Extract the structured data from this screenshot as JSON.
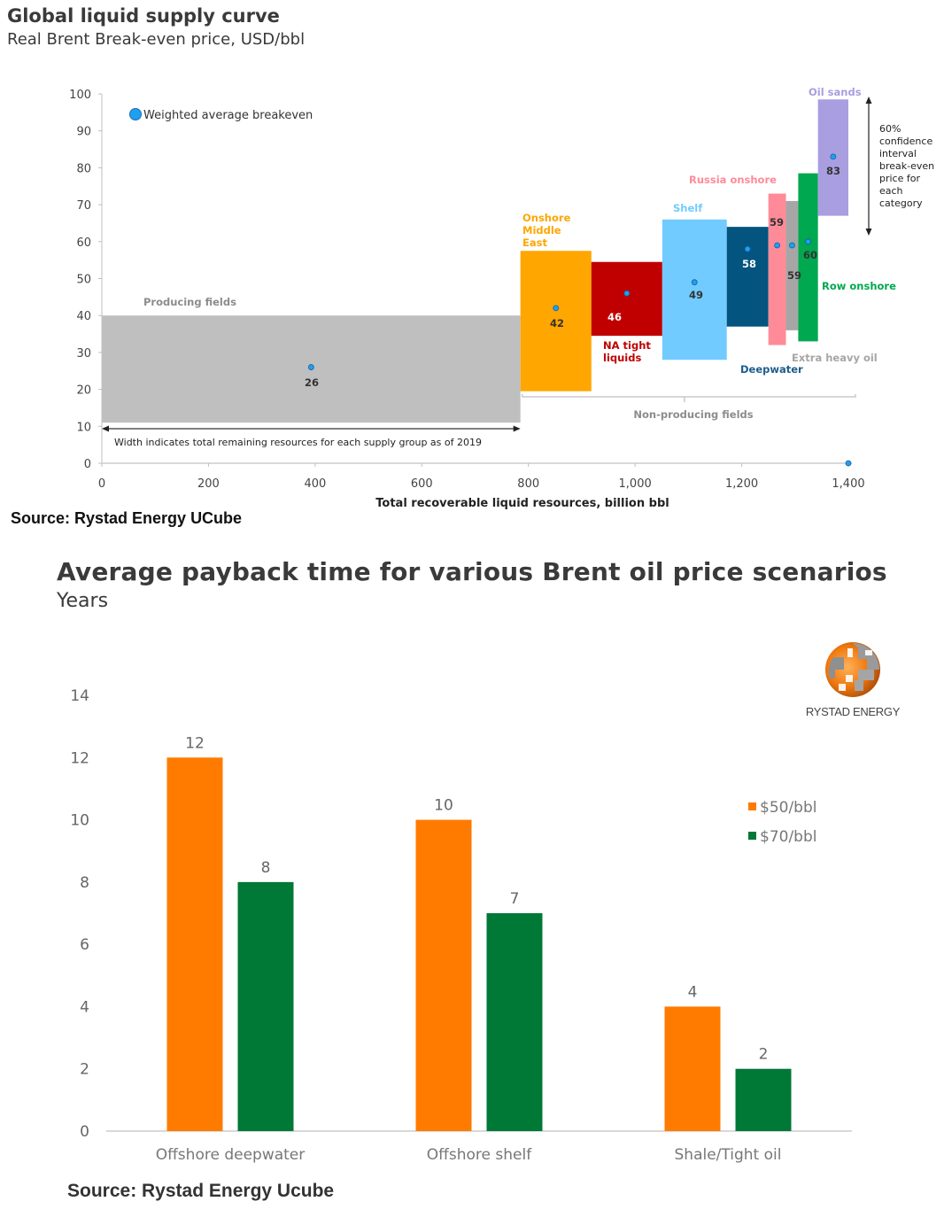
{
  "chart_data": [
    {
      "type": "bar",
      "variant": "supply-curve (variable-width floating bars)",
      "title": "Global liquid supply curve",
      "subtitle": "Real Brent Break-even price, USD/bbl",
      "xlabel": "Total recoverable liquid resources, billion bbl",
      "ylabel": "",
      "xlim": [
        0,
        1400
      ],
      "ylim": [
        0,
        100
      ],
      "x_ticks": [
        0,
        200,
        400,
        600,
        800,
        1000,
        1200,
        1400
      ],
      "x_tick_labels": [
        "0",
        "200",
        "400",
        "600",
        "800",
        "1,000",
        "1,200",
        "1,400"
      ],
      "y_ticks": [
        0,
        10,
        20,
        30,
        40,
        50,
        60,
        70,
        80,
        90,
        100
      ],
      "y_tick_labels": [
        "0",
        "10",
        "20",
        "30",
        "40",
        "50",
        "60",
        "70",
        "80",
        "90",
        "100"
      ],
      "legend": {
        "label": "Weighted average breakeven",
        "placement": "top-left",
        "color": "#1ea0f0"
      },
      "groups": [
        {
          "name": "Producing fields",
          "x_start": 0,
          "x_end": 785,
          "low": 11,
          "high": 40,
          "average": 26,
          "avg_label": "26",
          "color": "#bfbfbf",
          "label_color": "#8c8c8c",
          "value_color": "#333333"
        },
        {
          "name": "Onshore Middle East",
          "label_lines": [
            "Onshore",
            "Middle",
            "East"
          ],
          "x_start": 785,
          "x_end": 918,
          "low": 19.5,
          "high": 57.5,
          "average": 42,
          "avg_label": "42",
          "color": "#ffa600",
          "label_color": "#ffa600",
          "value_color": "#333333"
        },
        {
          "name": "NA tight liquids",
          "label_lines": [
            "NA tight",
            "liquids"
          ],
          "x_start": 918,
          "x_end": 1051,
          "low": 34.5,
          "high": 54.5,
          "average": 46,
          "avg_label": "46",
          "color": "#c00000",
          "label_color": "#c00000",
          "value_color": "#ffffff"
        },
        {
          "name": "Shelf",
          "x_start": 1051,
          "x_end": 1172,
          "low": 28,
          "high": 66,
          "average": 49,
          "avg_label": "49",
          "color": "#71cbff",
          "label_color": "#71cbff",
          "value_color": "#333333"
        },
        {
          "name": "Deepwater",
          "x_start": 1172,
          "x_end": 1250,
          "low": 37,
          "high": 64,
          "average": 58,
          "avg_label": "58",
          "color": "#03547f",
          "label_color": "#1d5d8c",
          "value_color": "#ffffff"
        },
        {
          "name": "Russia onshore",
          "x_start": 1250,
          "x_end": 1283,
          "low": 32,
          "high": 73,
          "average": 59,
          "avg_label": "59",
          "color": "#ff8b99",
          "label_color": "#ff8b99",
          "value_color": "#333333"
        },
        {
          "name": "Extra heavy oil",
          "x_start": 1283,
          "x_end": 1306,
          "low": 36,
          "high": 71,
          "average": 59,
          "avg_label": "59",
          "color": "#a6a6a6",
          "label_color": "#a6a6a6",
          "value_color": "#333333"
        },
        {
          "name": "Row onshore",
          "x_start": 1306,
          "x_end": 1343,
          "low": 33,
          "high": 78.5,
          "average": 60,
          "avg_label": "60",
          "color": "#00a84f",
          "label_color": "#00a84f",
          "value_color": "#333333"
        },
        {
          "name": "Oil sands",
          "x_start": 1343,
          "x_end": 1400,
          "low": 67,
          "high": 98.5,
          "average": 83,
          "avg_label": "83",
          "color": "#a99ee0",
          "label_color": "#a99ee0",
          "value_color": "#333333"
        }
      ],
      "extra_points": [
        {
          "x": 1400,
          "y": 0
        }
      ],
      "annotations": {
        "width_note": "Width indicates total remaining resources for each supply group as of 2019",
        "non_producing": "Non-producing fields",
        "confidence_note_lines": [
          "60%",
          "confidence",
          "interval",
          "break-even",
          "price for",
          "each",
          "category"
        ]
      },
      "source": "Source: Rystad Energy UCube"
    },
    {
      "type": "bar",
      "title": "Average payback time for various Brent oil price scenarios",
      "subtitle": "Years",
      "xlabel": "",
      "ylabel": "",
      "categories": [
        "Offshore deepwater",
        "Offshore shelf",
        "Shale/Tight oil"
      ],
      "series": [
        {
          "name": "$50/bbl",
          "values": [
            12,
            10,
            4
          ],
          "color": "#ff7b00"
        },
        {
          "name": "$70/bbl",
          "values": [
            8,
            7,
            2
          ],
          "color": "#007836"
        }
      ],
      "ylim": [
        0,
        14
      ],
      "y_ticks": [
        0,
        2,
        4,
        6,
        8,
        10,
        12,
        14
      ],
      "legend_placement": "right",
      "grid": false,
      "logo_text": "RYSTAD ENERGY",
      "source": "Source: Rystad Energy Ucube"
    }
  ]
}
